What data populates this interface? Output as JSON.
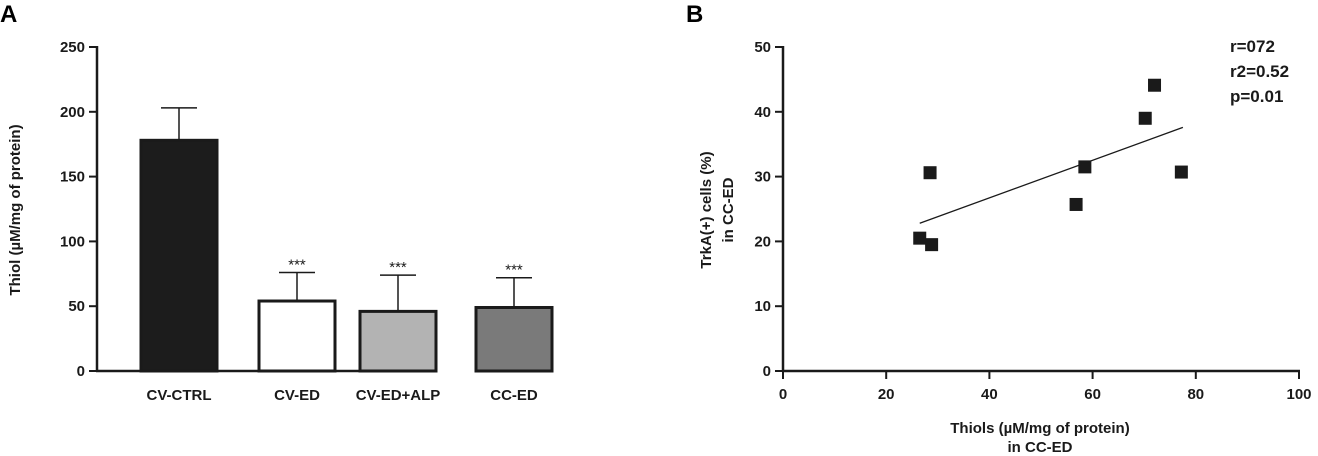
{
  "panels": {
    "a_label": "A",
    "b_label": "B"
  },
  "chart_data": [
    {
      "type": "bar",
      "panel": "A",
      "categories": [
        "CV-CTRL",
        "CV-ED",
        "CV-ED+ALP",
        "CC-ED"
      ],
      "values": [
        178,
        54,
        46,
        49
      ],
      "errors": [
        25,
        22,
        28,
        23
      ],
      "significance": [
        "",
        "***",
        "***",
        "***"
      ],
      "bar_colors": [
        "#1c1c1c",
        "#ffffff",
        "#b3b3b3",
        "#7a7a7a"
      ],
      "ylabel": "Thiol (µM/mg of protein)",
      "xlabel": "",
      "ylim": [
        0,
        250
      ],
      "yticks": [
        0,
        50,
        100,
        150,
        200,
        250
      ],
      "grid": false
    },
    {
      "type": "scatter",
      "panel": "B",
      "x": [
        26.5,
        28.5,
        28.8,
        56.8,
        58.5,
        70.2,
        72.0,
        77.2
      ],
      "y": [
        20.5,
        30.6,
        19.5,
        25.7,
        31.5,
        39.0,
        44.1,
        30.7
      ],
      "trendline": {
        "x": [
          26.5,
          77.5
        ],
        "y": [
          22.8,
          37.6
        ]
      },
      "xlabel": "Thiols (µM/mg of protein)",
      "xlabel_line2": "in CC-ED",
      "ylabel": "TrkA(+) cells (%)",
      "ylabel_line2": "in CC-ED",
      "xlim": [
        0,
        100
      ],
      "ylim": [
        0,
        50
      ],
      "xticks": [
        0,
        20,
        40,
        60,
        80,
        100
      ],
      "yticks": [
        0,
        10,
        20,
        30,
        40,
        50
      ],
      "stats": [
        "r=072",
        "r2=0.52",
        "p=0.01"
      ],
      "legend": "top-right",
      "grid": false
    }
  ]
}
